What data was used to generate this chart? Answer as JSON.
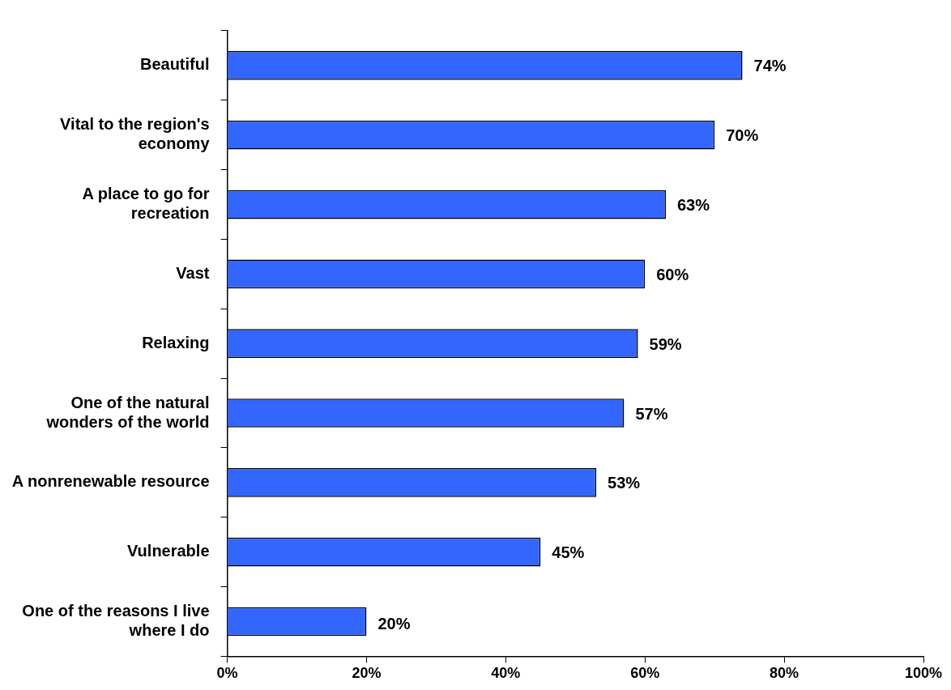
{
  "chart_data": {
    "type": "bar",
    "orientation": "horizontal",
    "categories": [
      "Beautiful",
      "Vital to the region's economy",
      "A place to go for recreation",
      "Vast",
      "Relaxing",
      "One of the natural wonders of the world",
      "A nonrenewable resource",
      "Vulnerable",
      "One of the reasons I live where I do"
    ],
    "values": [
      74,
      70,
      63,
      60,
      59,
      57,
      53,
      45,
      20
    ],
    "value_labels": [
      "74%",
      "70%",
      "63%",
      "60%",
      "59%",
      "57%",
      "53%",
      "45%",
      "20%"
    ],
    "color": "#3366ff",
    "xlim": [
      0,
      100
    ],
    "xticks": [
      {
        "value": 0,
        "label": "0%"
      },
      {
        "value": 20,
        "label": "20%"
      },
      {
        "value": 40,
        "label": "40%"
      },
      {
        "value": 60,
        "label": "60%"
      },
      {
        "value": 80,
        "label": "80%"
      },
      {
        "value": 100,
        "label": "100%"
      }
    ],
    "grid": false,
    "legend": false
  }
}
